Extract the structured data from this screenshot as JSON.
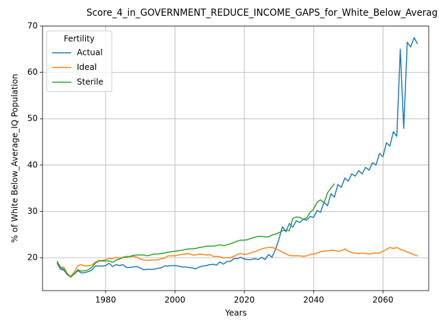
{
  "chart_data": {
    "type": "line",
    "title": "Score_4_in_GOVERNMENT_REDUCE_INCOME_GAPS_for_White_Below_Averag",
    "xlabel": "Years",
    "ylabel": "% of White Below_Average_IQ Population",
    "legend_title": "Fertility",
    "legend": "upper left",
    "grid": true,
    "xlim": [
      1961.8,
      2073.2
    ],
    "ylim": [
      12.9,
      70
    ],
    "xticks": [
      1980,
      2000,
      2020,
      2040,
      2060
    ],
    "yticks": [
      20,
      30,
      40,
      50,
      60,
      70
    ],
    "x": [
      1966,
      1967,
      1968,
      1969,
      1970,
      1971,
      1972,
      1973,
      1974,
      1975,
      1976,
      1977,
      1978,
      1979,
      1980,
      1981,
      1982,
      1983,
      1984,
      1985,
      1986,
      1987,
      1988,
      1989,
      1990,
      1991,
      1992,
      1993,
      1994,
      1995,
      1996,
      1997,
      1998,
      1999,
      2000,
      2001,
      2002,
      2003,
      2004,
      2005,
      2006,
      2007,
      2008,
      2009,
      2010,
      2011,
      2012,
      2013,
      2014,
      2015,
      2016,
      2017,
      2018,
      2019,
      2020,
      2021,
      2022,
      2023,
      2024,
      2025,
      2026,
      2027,
      2028,
      2029,
      2030,
      2031,
      2032,
      2033,
      2034,
      2035,
      2036,
      2037,
      2038,
      2039,
      2040,
      2041,
      2042,
      2043,
      2044,
      2045,
      2046,
      2047,
      2048,
      2049,
      2050,
      2051,
      2052,
      2053,
      2054,
      2055,
      2056,
      2057,
      2058,
      2059,
      2060,
      2061,
      2062,
      2063,
      2064,
      2065,
      2066,
      2067,
      2068,
      2069,
      2070
    ],
    "series": [
      {
        "name": "Actual",
        "color": "#1f77b4",
        "values": [
          18.8,
          17.5,
          17.3,
          16.3,
          15.9,
          16.5,
          17.2,
          16.7,
          16.8,
          17.0,
          17.3,
          18.2,
          18.2,
          18.2,
          18.3,
          18.8,
          18.1,
          18.5,
          18.3,
          18.5,
          17.9,
          17.9,
          18.0,
          18.1,
          17.8,
          17.4,
          17.5,
          17.5,
          17.5,
          17.7,
          17.8,
          18.2,
          18.2,
          18.3,
          18.3,
          18.2,
          18.0,
          18.0,
          17.9,
          17.8,
          17.6,
          18.0,
          18.2,
          18.3,
          18.5,
          18.6,
          18.4,
          19.1,
          18.6,
          19.2,
          19.2,
          19.8,
          19.8,
          20.1,
          19.7,
          19.6,
          19.6,
          19.8,
          19.6,
          20.1,
          19.6,
          20.7,
          20.1,
          21.8,
          24.0,
          26.7,
          25.6,
          27.4,
          26.6,
          28.0,
          27.6,
          28.3,
          28.1,
          28.9,
          28.7,
          30.2,
          29.8,
          32.0,
          31.2,
          33.8,
          33.1,
          35.8,
          35.2,
          37.2,
          36.5,
          38.1,
          37.6,
          38.8,
          38.1,
          39.5,
          38.9,
          40.5,
          40.0,
          42.5,
          41.8,
          44.8,
          44.1,
          47.2,
          46.2,
          65.0,
          47.9,
          66.5,
          65.5,
          67.5,
          66.1
        ]
      },
      {
        "name": "Ideal",
        "color": "#ff7f0e",
        "values": [
          19.0,
          18.0,
          17.9,
          16.5,
          16.0,
          17.0,
          18.3,
          18.5,
          18.2,
          18.3,
          18.4,
          19.0,
          19.4,
          19.4,
          19.6,
          19.8,
          19.8,
          20.1,
          19.9,
          20.1,
          20.3,
          20.2,
          20.3,
          20.1,
          19.7,
          19.5,
          19.4,
          19.5,
          19.5,
          19.5,
          19.8,
          19.9,
          20.4,
          20.4,
          20.4,
          20.6,
          20.7,
          20.8,
          20.9,
          20.6,
          20.6,
          20.8,
          20.7,
          20.6,
          20.7,
          20.3,
          20.3,
          20.2,
          19.9,
          20.0,
          20.0,
          20.3,
          20.7,
          20.9,
          20.7,
          20.8,
          21.1,
          21.3,
          21.6,
          21.9,
          22.1,
          22.2,
          22.2,
          22.0,
          21.6,
          21.2,
          20.8,
          20.5,
          20.4,
          20.4,
          20.4,
          20.3,
          20.4,
          20.7,
          20.8,
          21.0,
          21.3,
          21.4,
          21.5,
          21.6,
          21.6,
          21.4,
          21.5,
          21.9,
          21.4,
          21.1,
          21.0,
          20.9,
          21.0,
          20.9,
          20.8,
          21.0,
          21.0,
          21.0,
          21.4,
          21.8,
          22.2,
          22.0,
          22.2,
          21.8,
          21.6,
          21.2,
          21.0,
          20.6,
          20.4
        ]
      },
      {
        "name": "Sterile",
        "color": "#2ca02c",
        "values": [
          19.3,
          17.9,
          17.5,
          16.4,
          15.8,
          16.6,
          17.4,
          17.1,
          17.2,
          17.4,
          17.9,
          18.8,
          19.3,
          19.3,
          19.3,
          19.3,
          19.0,
          19.5,
          19.7,
          20.1,
          20.1,
          20.3,
          20.5,
          20.6,
          20.6,
          20.6,
          20.4,
          20.6,
          20.8,
          20.8,
          20.9,
          21.0,
          21.2,
          21.3,
          21.4,
          21.5,
          21.6,
          21.8,
          21.9,
          21.9,
          22.0,
          22.2,
          22.3,
          22.5,
          22.5,
          22.5,
          22.6,
          22.8,
          22.6,
          22.8,
          23.0,
          23.3,
          23.6,
          23.8,
          23.8,
          23.9,
          24.2,
          24.4,
          24.6,
          24.6,
          24.5,
          24.5,
          24.9,
          25.1,
          25.4,
          25.8,
          26.0,
          25.8,
          28.5,
          28.8,
          28.7,
          28.3,
          28.6,
          29.8,
          30.5,
          32.0,
          32.5,
          31.8,
          34.0,
          35.0,
          36.0,
          null,
          null,
          null,
          null,
          null,
          null,
          null,
          null,
          null,
          null,
          null,
          null,
          null,
          null,
          null,
          null,
          null,
          null,
          null,
          null,
          null,
          null,
          null,
          null
        ]
      }
    ]
  }
}
